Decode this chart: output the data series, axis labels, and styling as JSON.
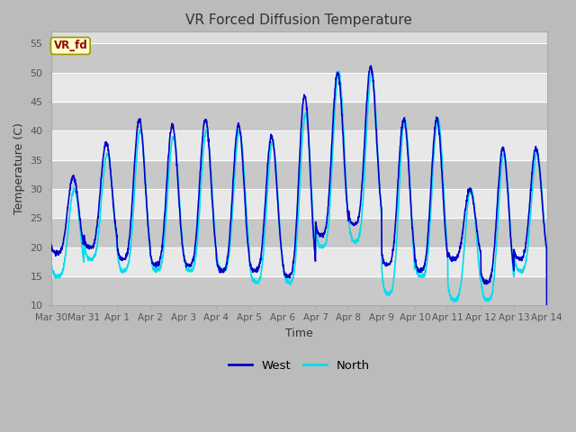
{
  "title": "VR Forced Diffusion Temperature",
  "xlabel": "Time",
  "ylabel": "Temperature (C)",
  "ylim": [
    10,
    57
  ],
  "yticks": [
    10,
    15,
    20,
    25,
    30,
    35,
    40,
    45,
    50,
    55
  ],
  "west_color": "#0000CC",
  "north_color": "#00DDEE",
  "west_linewidth": 1.2,
  "north_linewidth": 1.2,
  "legend_label_west": "West",
  "legend_label_north": "North",
  "annotation_text": "VR_fd",
  "annotation_color": "#990000",
  "annotation_bg": "#FFFFCC",
  "annotation_border": "#999900",
  "fig_bg_color": "#cccccc",
  "plot_bg_color": "#dddddd",
  "band_light": "#e8e8e8",
  "band_dark": "#d0d0d0",
  "x_tick_labels": [
    "Mar 30",
    "Mar 31",
    "Apr 1",
    "Apr 2",
    "Apr 3",
    "Apr 4",
    "Apr 5",
    "Apr 6",
    "Apr 7",
    "Apr 8",
    "Apr 9",
    "Apr 10",
    "Apr 11",
    "Apr 12",
    "Apr 13",
    "Apr 14"
  ],
  "x_tick_positions": [
    0,
    1,
    2,
    3,
    4,
    5,
    6,
    7,
    8,
    9,
    10,
    11,
    12,
    13,
    14,
    15
  ],
  "west_daily_min": [
    19,
    20,
    18,
    17,
    17,
    16,
    16,
    15,
    22,
    24,
    17,
    16,
    18,
    14,
    18,
    15
  ],
  "west_daily_max": [
    32,
    38,
    42,
    41,
    42,
    41,
    39,
    46,
    50,
    51,
    42,
    42,
    30,
    37,
    37,
    22
  ],
  "north_daily_min": [
    15,
    18,
    16,
    16,
    16,
    16,
    14,
    14,
    20,
    21,
    12,
    15,
    11,
    11,
    16,
    15
  ],
  "north_daily_max": [
    30,
    36,
    40,
    39,
    40,
    40,
    38,
    43,
    50,
    50,
    42,
    42,
    30,
    36,
    36,
    22
  ]
}
